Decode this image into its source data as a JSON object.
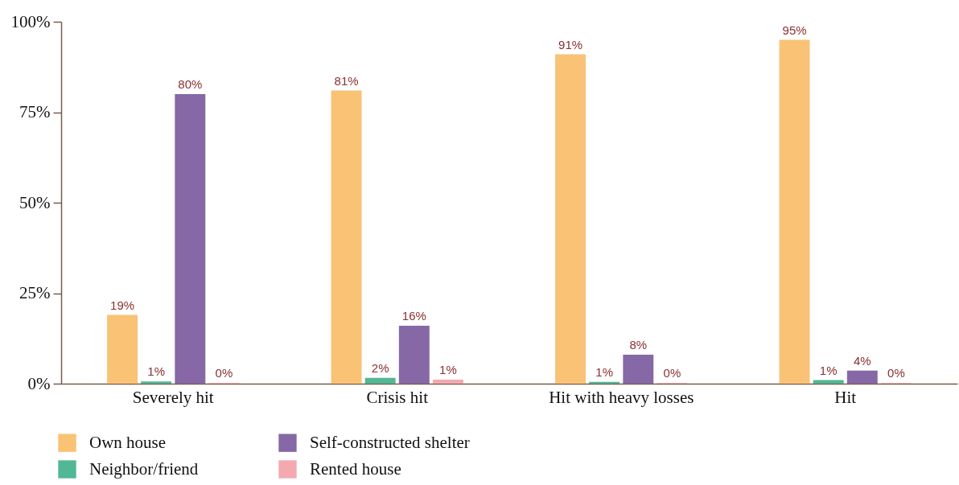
{
  "chart_data": {
    "type": "bar",
    "categories": [
      "Severely hit",
      "Crisis hit",
      "Hit with heavy losses",
      "Hit"
    ],
    "series": [
      {
        "name": "Own house",
        "color": "#f9c275",
        "values": [
          19,
          81,
          91,
          95
        ],
        "value_labels": [
          "19%",
          "81%",
          "91%",
          "95%"
        ]
      },
      {
        "name": "Neighbor/friend",
        "color": "#52b794",
        "values": [
          0.6,
          1.6,
          0.5,
          1
        ],
        "value_labels": [
          "1%",
          "2%",
          "1%",
          "1%"
        ]
      },
      {
        "name": "Self-constructed shelter",
        "color": "#8568a5",
        "values": [
          80,
          16,
          8,
          3.6
        ],
        "value_labels": [
          "80%",
          "16%",
          "8%",
          "4%"
        ]
      },
      {
        "name": "Rented house",
        "color": "#f4a9b0",
        "values": [
          0.2,
          1.1,
          0.2,
          0.2
        ],
        "value_labels": [
          "0%",
          "1%",
          "0%",
          "0%"
        ]
      }
    ],
    "ylim": [
      0,
      100
    ],
    "yticks": [
      {
        "value": 0,
        "label": "0%"
      },
      {
        "value": 25,
        "label": "25%"
      },
      {
        "value": 50,
        "label": "50%"
      },
      {
        "value": 75,
        "label": "75%"
      },
      {
        "value": 100,
        "label": "100%"
      }
    ],
    "grid": false,
    "legend": "bottom"
  }
}
